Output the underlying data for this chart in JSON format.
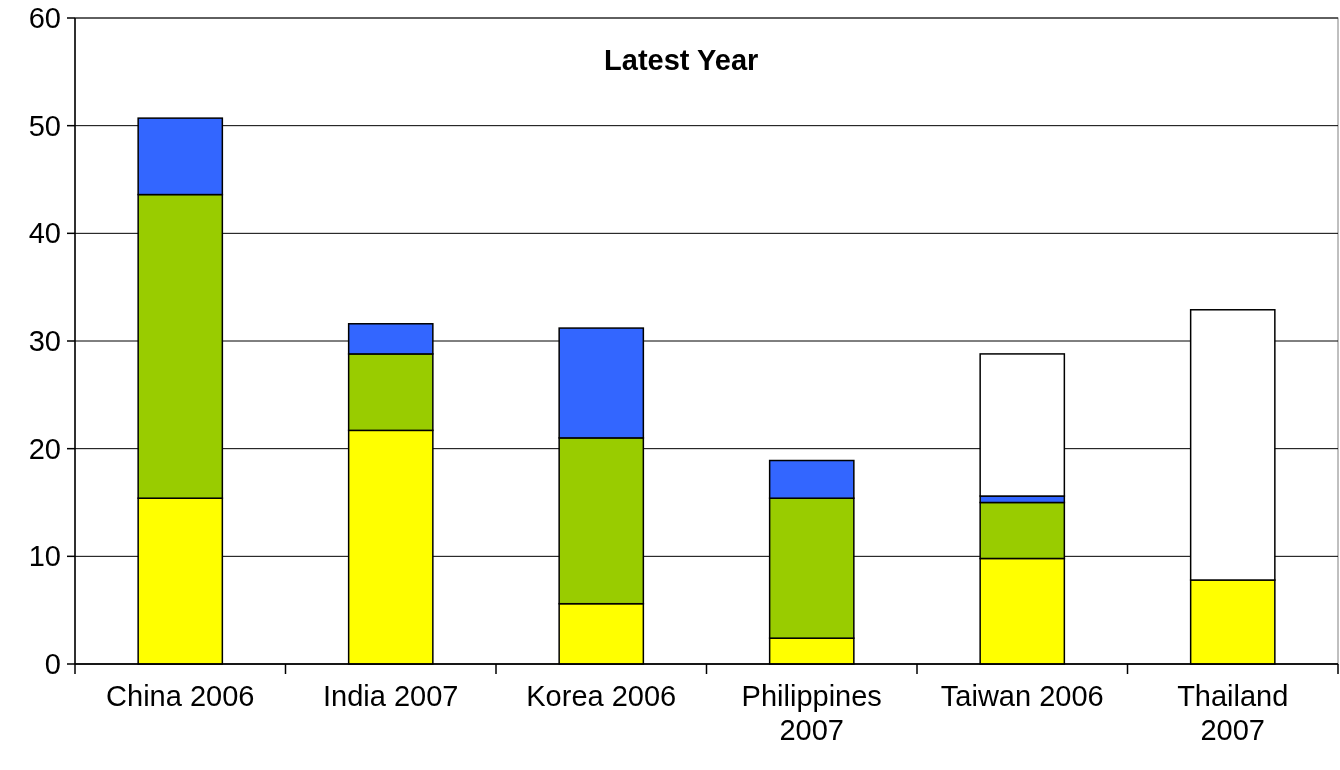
{
  "chart_data": {
    "type": "bar",
    "title": "Latest Year",
    "stacked": true,
    "categories": [
      "China 2006",
      "India 2007",
      "Korea 2006",
      "Philippines 2007",
      "Taiwan 2006",
      "Thailand 2007"
    ],
    "series": [
      {
        "color": "#ffff00",
        "values": [
          15.4,
          21.7,
          5.6,
          2.4,
          9.8,
          7.8
        ]
      },
      {
        "color": "#99cc00",
        "values": [
          28.2,
          7.1,
          15.4,
          13.0,
          5.2,
          null
        ]
      },
      {
        "color": "#3366ff",
        "values": [
          7.1,
          2.8,
          10.2,
          3.5,
          0.6,
          null
        ]
      },
      {
        "color": "#ffffff",
        "values": [
          null,
          null,
          null,
          null,
          13.2,
          25.1
        ]
      }
    ],
    "ylim": [
      0,
      60
    ],
    "yticks": [
      0,
      10,
      20,
      30,
      40,
      50,
      60
    ],
    "grid": "y"
  }
}
